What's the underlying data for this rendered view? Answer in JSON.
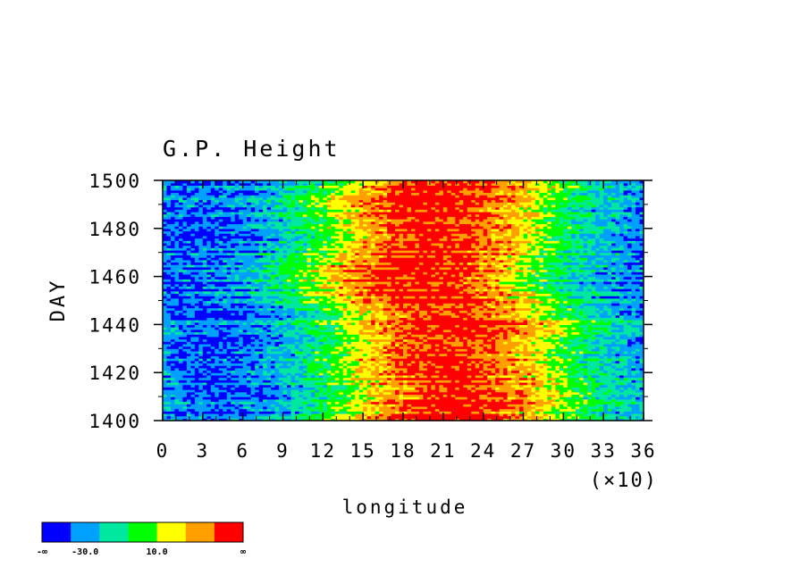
{
  "chart_data": {
    "type": "heatmap",
    "title": "G.P. Height",
    "xlabel": "longitude",
    "ylabel": "DAY",
    "x_multiplier_label": "(×10)",
    "xlim": [
      0,
      36
    ],
    "ylim": [
      1400,
      1500
    ],
    "x_ticks": [
      "0",
      "3",
      "6",
      "9",
      "12",
      "15",
      "18",
      "21",
      "24",
      "27",
      "30",
      "33",
      "36"
    ],
    "y_ticks": [
      "1400",
      "1420",
      "1440",
      "1460",
      "1480",
      "1500"
    ],
    "colorbar": {
      "colors": [
        "#0000ff",
        "#00a0ff",
        "#00e8a0",
        "#00ff00",
        "#ffff00",
        "#ffa000",
        "#ff0000"
      ],
      "tick_labels": [
        "-∞",
        "-30.0",
        "10.0",
        "∞"
      ]
    },
    "field_description": "Anomaly is low (blue) near longitudes 0-90 and 330-360 and high (red) near 150-270, with the high band wandering in longitude with DAY.",
    "anomaly_profile": {
      "longitude_x10": [
        0,
        3,
        6,
        9,
        12,
        15,
        18,
        21,
        24,
        27,
        30,
        33,
        36
      ],
      "typical_level_index": [
        0.6,
        0.5,
        0.8,
        1.6,
        3.0,
        4.6,
        5.8,
        6.1,
        5.6,
        4.5,
        2.8,
        1.6,
        1.0
      ]
    }
  }
}
